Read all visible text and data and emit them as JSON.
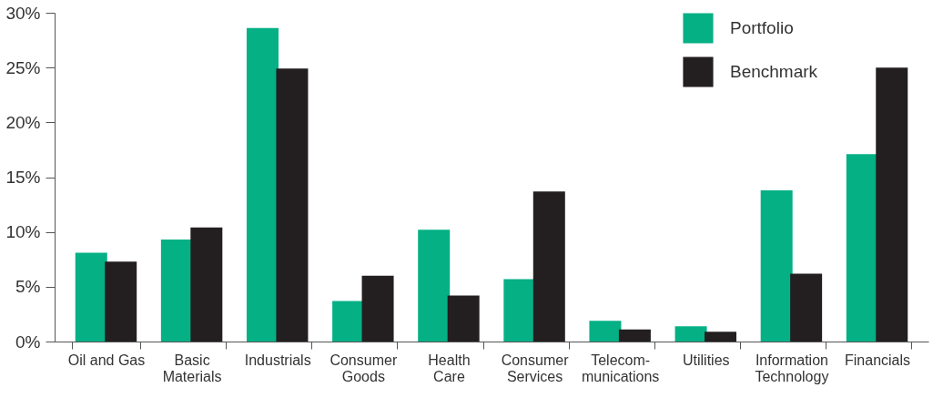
{
  "chart_data": {
    "type": "bar",
    "categories": [
      "Oil and Gas",
      "Basic\nMaterials",
      "Industrials",
      "Consumer\nGoods",
      "Health\nCare",
      "Consumer\nServices",
      "Telecom-\nmunications",
      "Utilities",
      "Information\nTechnology",
      "Financials"
    ],
    "series": [
      {
        "name": "Portfolio",
        "color": "#05b085",
        "values": [
          8.1,
          9.3,
          28.6,
          3.7,
          10.2,
          5.7,
          1.9,
          1.4,
          13.8,
          17.1
        ]
      },
      {
        "name": "Benchmark",
        "color": "#231f20",
        "values": [
          7.3,
          10.4,
          24.9,
          6.0,
          4.2,
          13.7,
          1.1,
          0.9,
          6.2,
          25.0
        ]
      }
    ],
    "ylim": [
      0,
      30
    ],
    "yticks": [
      {
        "value": 0,
        "label": "0%"
      },
      {
        "value": 5,
        "label": "5%"
      },
      {
        "value": 10,
        "label": "10%"
      },
      {
        "value": 15,
        "label": "15%"
      },
      {
        "value": 20,
        "label": "20%"
      },
      {
        "value": 25,
        "label": "25%"
      },
      {
        "value": 30,
        "label": "30%"
      }
    ],
    "grid": false,
    "legend": "top right"
  }
}
